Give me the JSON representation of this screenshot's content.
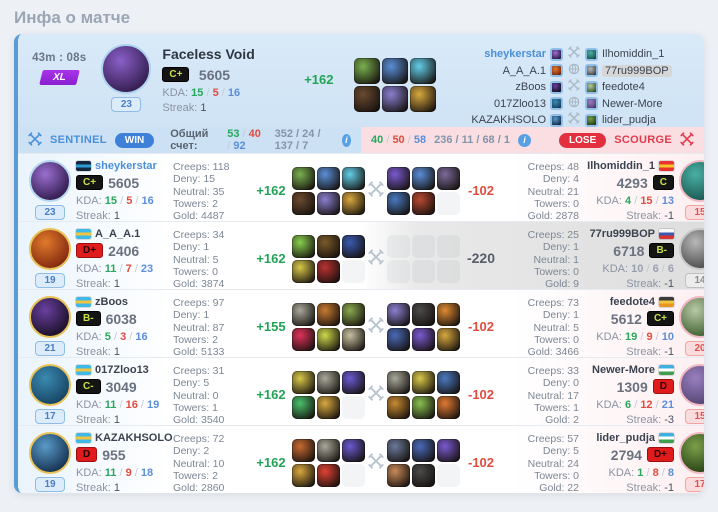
{
  "page": {
    "title": "Инфа о матче"
  },
  "labels": {
    "kda": "KDA:",
    "streak": "Streak:",
    "sep": "/",
    "creeps": "Creeps:",
    "deny": "Deny:",
    "neutral": "Neutral:",
    "towers": "Towers:",
    "gold": "Gold:"
  },
  "colors": {
    "accent_blue": "#4a90d9",
    "win_blue": "#3e7fd8",
    "lose_red": "#e2303f",
    "kill_green": "#27a85c",
    "death_red": "#e24c3f",
    "assist_blue": "#5b8fd9",
    "xl_purple": "#9b2ae0",
    "badge_dark_bg": "#141414",
    "badge_dark_text": "#c9e04a",
    "badge_red_bg": "#e01b1b"
  },
  "header": {
    "duration": "43m : 08s",
    "size_badge": "XL",
    "level": "23",
    "hero_name": "Faceless Void",
    "rank_badge": "C+",
    "rating": "5605",
    "kda": {
      "k": "15",
      "d": "5",
      "a": "16"
    },
    "streak": "1",
    "delta": "+162",
    "hero": [
      "#8a5fc8",
      "#3a2258"
    ],
    "ring": "#aed2f0",
    "items": [
      "#7ab04f",
      "#5a8fd8",
      "#63cde8",
      "#6a4a30",
      "#8a7fd0",
      "#d8a83f"
    ],
    "mid_icons": [
      "swords",
      "globe",
      "swords",
      "globe",
      "swords"
    ],
    "right_highlight_index": 1
  },
  "score_bar": {
    "left_team": "SENTINEL",
    "left_result": "WIN",
    "total_label": "Общий счет:",
    "left_score": {
      "k": "53",
      "d": "40",
      "a": "92"
    },
    "left_extra": "352 / 24 / 137 / 7",
    "info_icon": "i",
    "right_score": {
      "k": "40",
      "d": "50",
      "a": "58"
    },
    "right_extra": "236 / 11 / 68 / 1",
    "right_result": "LOSE",
    "right_team": "SCOURGE"
  },
  "players": [
    {
      "left": {
        "level": "23",
        "level_style": "blue",
        "hero": [
          "#9a6fd0",
          "#3a2258"
        ],
        "ring": "#b7d6f0",
        "flag": [
          "#14293d",
          "#2e9fd4",
          "#14293d"
        ],
        "name": "sheykerstar",
        "link": true,
        "badge": "C+",
        "badge_style": "dark",
        "rating": "5605",
        "kda": [
          "15",
          "5",
          "16"
        ],
        "streak": "1",
        "stats": {
          "creeps": "118",
          "deny": "15",
          "neutral": "35",
          "towers": "2",
          "gold": "4487"
        },
        "delta": "+162",
        "delta_style": "green",
        "items": [
          "#7ab04f",
          "#5a8fd8",
          "#63cde8",
          "#6a4a30",
          "#8a7fd0",
          "#d8a83f"
        ]
      },
      "right": {
        "level": "15",
        "level_style": "red",
        "hero": [
          "#49b0a4",
          "#1f5f58"
        ],
        "ring": "#f0b9c4",
        "flag": [
          "#e83232",
          "#f8c828",
          "#e83232"
        ],
        "name": "Ilhomiddin_1",
        "link": false,
        "badge": "C",
        "badge_style": "dark",
        "rating": "4293",
        "kda": [
          "4",
          "15",
          "13"
        ],
        "streak": "-1",
        "stats": {
          "creeps": "48",
          "deny": "4",
          "neutral": "21",
          "towers": "0",
          "gold": "2878"
        },
        "delta": "-102",
        "delta_style": "red",
        "items": [
          "#7a5ad0",
          "#5a8fd8",
          "#7a6a9a",
          "#4a7ac0",
          "#b84a32",
          null
        ]
      }
    },
    {
      "left": {
        "level": "19",
        "level_style": "blue",
        "hero": [
          "#e07a2a",
          "#8a2f12"
        ],
        "ring": "#e8c25a",
        "flag": [
          "#3fb9e8",
          "#f2c43f",
          "#3fb9e8"
        ],
        "name": "A_A_A.1",
        "link": false,
        "badge": "D+",
        "badge_style": "red",
        "rating": "2406",
        "kda": [
          "11",
          "7",
          "23"
        ],
        "streak": "1",
        "stats": {
          "creeps": "34",
          "deny": "1",
          "neutral": "5",
          "towers": "0",
          "gold": "3874"
        },
        "delta": "+162",
        "delta_style": "green",
        "items": [
          "#8ad04f",
          "#7a5a2a",
          "#3a5ab0",
          "#d8c84a",
          "#b83232",
          null
        ]
      },
      "right": {
        "level": "14",
        "level_style": "gray",
        "hero": [
          "#b8b8b8",
          "#555555"
        ],
        "ring": "#c8c8c8",
        "flag": [
          "#f8f8f8",
          "#3a5ab0",
          "#d83232"
        ],
        "name": "77ru999BOP",
        "link": false,
        "badge": "B-",
        "badge_style": "dark",
        "rating": "6718",
        "kda": [
          "10",
          "6",
          "6"
        ],
        "kda_muted": true,
        "streak": "-1",
        "stats": {
          "creeps": "25",
          "deny": "1",
          "neutral": "1",
          "towers": "0",
          "gold": "9"
        },
        "delta": "-220",
        "delta_style": "gray",
        "abandoned": true,
        "items": [
          null,
          null,
          null,
          null,
          null,
          null
        ]
      }
    },
    {
      "left": {
        "level": "21",
        "level_style": "blue",
        "hero": [
          "#6a3fa0",
          "#201430"
        ],
        "ring": "#e8c25a",
        "flag": [
          "#3fb9e8",
          "#f2c43f",
          "#3fb9e8"
        ],
        "name": "zBoos",
        "link": false,
        "badge": "B-",
        "badge_style": "dark",
        "rating": "6038",
        "kda": [
          "5",
          "3",
          "16"
        ],
        "streak": "1",
        "stats": {
          "creeps": "97",
          "deny": "1",
          "neutral": "87",
          "towers": "2",
          "gold": "5133"
        },
        "delta": "+155",
        "delta_style": "green",
        "items": [
          "#a8a89a",
          "#c87a32",
          "#8aa84f",
          "#e0325a",
          "#cdd84a",
          "#c8c0a0"
        ]
      },
      "right": {
        "level": "20",
        "level_style": "red",
        "hero": [
          "#b8c8a8",
          "#4a6a3a"
        ],
        "ring": "#f0b9c4",
        "flag": [
          "#3a3a3a",
          "#f2c43f",
          "#e8961e"
        ],
        "name": "feedote4",
        "link": false,
        "badge": "C+",
        "badge_style": "dark",
        "rating": "5612",
        "kda": [
          "19",
          "9",
          "10"
        ],
        "streak": "-1",
        "stats": {
          "creeps": "73",
          "deny": "1",
          "neutral": "5",
          "towers": "0",
          "gold": "3466"
        },
        "delta": "-102",
        "delta_style": "red",
        "items": [
          "#8a7fd0",
          "#4a4a4a",
          "#e08a32",
          "#4a6ab8",
          "#7a5ad0",
          "#d8a83f"
        ]
      }
    },
    {
      "left": {
        "level": "17",
        "level_style": "blue",
        "hero": [
          "#3a8ab0",
          "#1a4a6a"
        ],
        "ring": "#e8c25a",
        "flag": [
          "#3fb9e8",
          "#f2c43f",
          "#3fb9e8"
        ],
        "name": "017Zloo13",
        "link": false,
        "badge": "C-",
        "badge_style": "dark",
        "rating": "3049",
        "kda": [
          "11",
          "16",
          "19"
        ],
        "streak": "1",
        "stats": {
          "creeps": "31",
          "deny": "5",
          "neutral": "0",
          "towers": "1",
          "gold": "3540"
        },
        "delta": "+162",
        "delta_style": "green",
        "items": [
          "#d8c84a",
          "#a8a89a",
          "#6a5ad0",
          "#4ac06a",
          "#d8a83f",
          null
        ]
      },
      "right": {
        "level": "15",
        "level_style": "red",
        "hero": [
          "#9a7fc0",
          "#5a4a7a"
        ],
        "ring": "#f0b9c4",
        "flag": [
          "#3fb0e0",
          "#ffffff",
          "#3f9e4f"
        ],
        "name": "Newer-More",
        "link": false,
        "badge": "D",
        "badge_style": "red",
        "rating": "1309",
        "kda": [
          "6",
          "12",
          "21"
        ],
        "streak": "-3",
        "stats": {
          "creeps": "33",
          "deny": "0",
          "neutral": "17",
          "towers": "1",
          "gold": "2"
        },
        "delta": "-102",
        "delta_style": "red",
        "items": [
          "#a8a89a",
          "#d8c84a",
          "#4a7ac0",
          "#c88a32",
          "#8ac04f",
          "#e07a32"
        ]
      }
    },
    {
      "left": {
        "level": "19",
        "level_style": "blue",
        "hero": [
          "#5a9ac8",
          "#1a3a5a"
        ],
        "ring": "#e8c25a",
        "flag": [
          "#3fb9e8",
          "#f2c43f",
          "#3fb9e8"
        ],
        "name": "KAZAKHSOLO",
        "link": false,
        "badge": "D",
        "badge_style": "red",
        "rating": "955",
        "kda": [
          "11",
          "9",
          "18"
        ],
        "streak": "1",
        "stats": {
          "creeps": "72",
          "deny": "2",
          "neutral": "10",
          "towers": "2",
          "gold": "2860"
        },
        "delta": "+162",
        "delta_style": "green",
        "items": [
          "#c86a32",
          "#a8a89a",
          "#6a5ad0",
          "#d8a83f",
          "#e04232",
          null
        ]
      },
      "right": {
        "level": "17",
        "level_style": "red",
        "hero": [
          "#7aa04a",
          "#2f4a1a"
        ],
        "ring": "#f0b9c4",
        "flag": [
          "#3fb0e0",
          "#ffffff",
          "#3f9e4f"
        ],
        "name": "lider_pudja",
        "link": false,
        "badge": "D+",
        "badge_style": "red",
        "rating": "2794",
        "kda": [
          "1",
          "8",
          "8"
        ],
        "streak": "-1",
        "stats": {
          "creeps": "57",
          "deny": "5",
          "neutral": "24",
          "towers": "0",
          "gold": "22"
        },
        "delta": "-102",
        "delta_style": "red",
        "items": [
          "#6a7a9a",
          "#4a6ab8",
          "#7a5ad0",
          "#c88a5a",
          "#4a4a4a",
          null
        ]
      }
    }
  ]
}
